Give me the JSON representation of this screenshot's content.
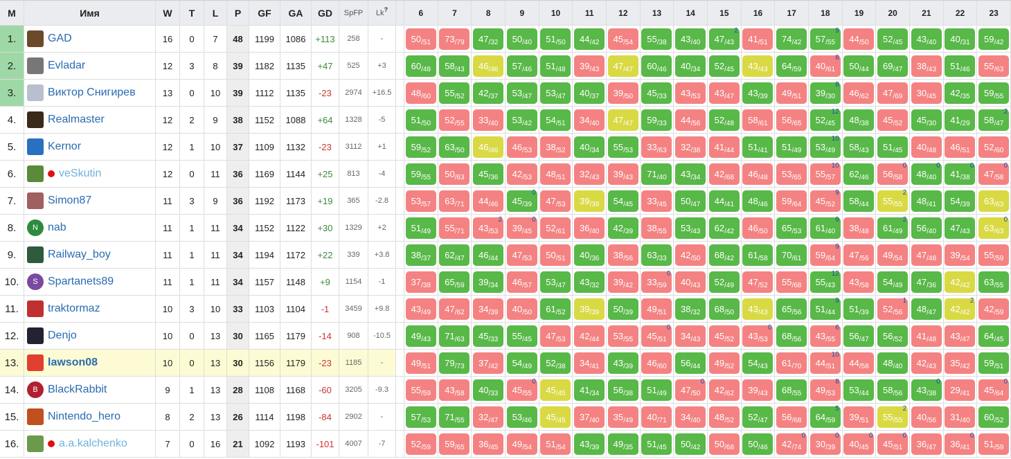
{
  "header": {
    "rank": "M",
    "name": "Имя",
    "w": "W",
    "t": "T",
    "l": "L",
    "p": "P",
    "gf": "GF",
    "ga": "GA",
    "gd": "GD",
    "spfp": "SpFP",
    "lk": "Lk",
    "lk_help": "?",
    "rounds": [
      "6",
      "7",
      "8",
      "9",
      "10",
      "11",
      "12",
      "13",
      "14",
      "15",
      "16",
      "17",
      "18",
      "19",
      "20",
      "21",
      "22",
      "23"
    ]
  },
  "rows": [
    {
      "rank": "1.",
      "name": "GAD",
      "w": 16,
      "t": 0,
      "l": 7,
      "p": 48,
      "gf": 1199,
      "ga": 1086,
      "gd": "+113",
      "spfp": 258,
      "lk": "-",
      "rounds": [
        [
          50,
          51
        ],
        [
          73,
          79
        ],
        [
          47,
          32
        ],
        [
          50,
          40
        ],
        [
          51,
          50
        ],
        [
          44,
          42
        ],
        [
          45,
          54
        ],
        [
          55,
          38
        ],
        [
          43,
          40
        ],
        [
          47,
          43,
          2
        ],
        [
          41,
          51
        ],
        [
          74,
          42
        ],
        [
          57,
          55,
          9
        ],
        [
          44,
          50
        ],
        [
          52,
          45
        ],
        [
          43,
          40
        ],
        [
          40,
          31
        ],
        [
          59,
          42
        ]
      ]
    },
    {
      "rank": "2.",
      "name": "Evladar",
      "w": 12,
      "t": 3,
      "l": 8,
      "p": 39,
      "gf": 1182,
      "ga": 1135,
      "gd": "+47",
      "spfp": 525,
      "lk": "+3",
      "rounds": [
        [
          60,
          48
        ],
        [
          58,
          43
        ],
        [
          46,
          46
        ],
        [
          57,
          46
        ],
        [
          51,
          48
        ],
        [
          39,
          43
        ],
        [
          47,
          47
        ],
        [
          60,
          46
        ],
        [
          40,
          34
        ],
        [
          52,
          45
        ],
        [
          43,
          43
        ],
        [
          64,
          59
        ],
        [
          40,
          61,
          8
        ],
        [
          50,
          44
        ],
        [
          69,
          47
        ],
        [
          38,
          43
        ],
        [
          51,
          46
        ],
        [
          55,
          63
        ]
      ]
    },
    {
      "rank": "3.",
      "name": "Виктор Снигирев",
      "w": 13,
      "t": 0,
      "l": 10,
      "p": 39,
      "gf": 1112,
      "ga": 1135,
      "gd": "-23",
      "spfp": 2974,
      "lk": "+16.5",
      "rounds": [
        [
          48,
          60
        ],
        [
          55,
          52
        ],
        [
          42,
          37
        ],
        [
          53,
          47
        ],
        [
          53,
          47
        ],
        [
          40,
          37
        ],
        [
          39,
          50
        ],
        [
          45,
          33
        ],
        [
          43,
          53
        ],
        [
          43,
          47
        ],
        [
          43,
          39
        ],
        [
          49,
          51
        ],
        [
          39,
          30,
          8
        ],
        [
          46,
          62
        ],
        [
          47,
          69
        ],
        [
          30,
          45
        ],
        [
          42,
          35
        ],
        [
          59,
          55
        ]
      ]
    },
    {
      "rank": "4.",
      "name": "Realmaster",
      "w": 12,
      "t": 2,
      "l": 9,
      "p": 38,
      "gf": 1152,
      "ga": 1088,
      "gd": "+64",
      "spfp": 1328,
      "lk": "-5",
      "rounds": [
        [
          51,
          50
        ],
        [
          52,
          55
        ],
        [
          33,
          40
        ],
        [
          53,
          42
        ],
        [
          54,
          51
        ],
        [
          34,
          40
        ],
        [
          47,
          47
        ],
        [
          59,
          33
        ],
        [
          44,
          56
        ],
        [
          52,
          48
        ],
        [
          58,
          61
        ],
        [
          56,
          65
        ],
        [
          52,
          45,
          12
        ],
        [
          48,
          38
        ],
        [
          45,
          52
        ],
        [
          45,
          30
        ],
        [
          41,
          29
        ],
        [
          58,
          47,
          2
        ]
      ]
    },
    {
      "rank": "5.",
      "name": "Kernor",
      "w": 12,
      "t": 1,
      "l": 10,
      "p": 37,
      "gf": 1109,
      "ga": 1132,
      "gd": "-23",
      "spfp": 3112,
      "lk": "+1",
      "rounds": [
        [
          59,
          52
        ],
        [
          63,
          50
        ],
        [
          46,
          46
        ],
        [
          46,
          53
        ],
        [
          38,
          52
        ],
        [
          40,
          34
        ],
        [
          55,
          53
        ],
        [
          33,
          63
        ],
        [
          32,
          38
        ],
        [
          41,
          44
        ],
        [
          51,
          41
        ],
        [
          51,
          49
        ],
        [
          53,
          49,
          10
        ],
        [
          58,
          43
        ],
        [
          51,
          45
        ],
        [
          40,
          48
        ],
        [
          46,
          51
        ],
        [
          52,
          60
        ]
      ]
    },
    {
      "rank": "6.",
      "name": "veSkutin",
      "w": 12,
      "t": 0,
      "l": 11,
      "p": 36,
      "gf": 1169,
      "ga": 1144,
      "gd": "+25",
      "spfp": 813,
      "lk": "-4",
      "rounds": [
        [
          59,
          55
        ],
        [
          50,
          63
        ],
        [
          45,
          36
        ],
        [
          42,
          53
        ],
        [
          48,
          51
        ],
        [
          32,
          43
        ],
        [
          39,
          43
        ],
        [
          71,
          40
        ],
        [
          43,
          34
        ],
        [
          42,
          68
        ],
        [
          46,
          48
        ],
        [
          53,
          65
        ],
        [
          55,
          57,
          10
        ],
        [
          62,
          46
        ],
        [
          56,
          58,
          0
        ],
        [
          48,
          40,
          0
        ],
        [
          41,
          38,
          0
        ],
        [
          47,
          58,
          0
        ]
      ]
    },
    {
      "rank": "7.",
      "name": "Simon87",
      "w": 11,
      "t": 3,
      "l": 9,
      "p": 36,
      "gf": 1192,
      "ga": 1173,
      "gd": "+19",
      "spfp": 365,
      "lk": "-2.8",
      "rounds": [
        [
          53,
          57
        ],
        [
          63,
          71
        ],
        [
          44,
          46
        ],
        [
          45,
          39,
          0
        ],
        [
          47,
          53
        ],
        [
          39,
          39
        ],
        [
          54,
          45
        ],
        [
          33,
          45
        ],
        [
          50,
          47
        ],
        [
          44,
          41
        ],
        [
          48,
          46
        ],
        [
          59,
          64
        ],
        [
          45,
          52,
          9
        ],
        [
          58,
          44
        ],
        [
          55,
          55,
          2
        ],
        [
          48,
          41
        ],
        [
          54,
          39
        ],
        [
          63,
          63
        ]
      ]
    },
    {
      "rank": "8.",
      "name": "nab",
      "avatar": "N",
      "w": 11,
      "t": 1,
      "l": 11,
      "p": 34,
      "gf": 1152,
      "ga": 1122,
      "gd": "+30",
      "spfp": 1329,
      "lk": "+2",
      "rounds": [
        [
          51,
          49
        ],
        [
          55,
          71
        ],
        [
          43,
          53,
          2
        ],
        [
          39,
          45,
          0
        ],
        [
          52,
          61
        ],
        [
          36,
          40
        ],
        [
          42,
          39
        ],
        [
          38,
          55
        ],
        [
          53,
          43
        ],
        [
          62,
          42
        ],
        [
          46,
          50
        ],
        [
          65,
          53
        ],
        [
          61,
          40,
          9
        ],
        [
          38,
          48
        ],
        [
          61,
          49,
          2
        ],
        [
          56,
          40
        ],
        [
          47,
          43
        ],
        [
          63,
          63,
          0
        ]
      ]
    },
    {
      "rank": "9.",
      "name": "Railway_boy",
      "w": 11,
      "t": 1,
      "l": 11,
      "p": 34,
      "gf": 1194,
      "ga": 1172,
      "gd": "+22",
      "spfp": 339,
      "lk": "+3.8",
      "rounds": [
        [
          38,
          37
        ],
        [
          62,
          47
        ],
        [
          46,
          44
        ],
        [
          47,
          53
        ],
        [
          50,
          51
        ],
        [
          40,
          36
        ],
        [
          38,
          56
        ],
        [
          63,
          33
        ],
        [
          42,
          50
        ],
        [
          68,
          42
        ],
        [
          61,
          58
        ],
        [
          70,
          61
        ],
        [
          59,
          64,
          9
        ],
        [
          47,
          56
        ],
        [
          49,
          54
        ],
        [
          47,
          48
        ],
        [
          39,
          54
        ],
        [
          55,
          59
        ]
      ]
    },
    {
      "rank": "10.",
      "name": "Spartanets89",
      "avatar": "S",
      "w": 11,
      "t": 1,
      "l": 11,
      "p": 34,
      "gf": 1157,
      "ga": 1148,
      "gd": "+9",
      "spfp": 1154,
      "lk": "-1",
      "rounds": [
        [
          37,
          38
        ],
        [
          65,
          59
        ],
        [
          39,
          34
        ],
        [
          46,
          57
        ],
        [
          53,
          47
        ],
        [
          43,
          32
        ],
        [
          39,
          42
        ],
        [
          33,
          59,
          0
        ],
        [
          40,
          43
        ],
        [
          52,
          49
        ],
        [
          47,
          52
        ],
        [
          55,
          68
        ],
        [
          55,
          43,
          12
        ],
        [
          43,
          58
        ],
        [
          54,
          49
        ],
        [
          47,
          36
        ],
        [
          42,
          42
        ],
        [
          63,
          55
        ]
      ]
    },
    {
      "rank": "11.",
      "name": "traktormaz",
      "w": 10,
      "t": 3,
      "l": 10,
      "p": 33,
      "gf": 1103,
      "ga": 1104,
      "gd": "-1",
      "spfp": 3459,
      "lk": "+9.8",
      "rounds": [
        [
          43,
          49
        ],
        [
          47,
          62
        ],
        [
          34,
          39
        ],
        [
          40,
          50
        ],
        [
          61,
          52
        ],
        [
          39,
          39
        ],
        [
          50,
          39
        ],
        [
          49,
          51
        ],
        [
          38,
          32
        ],
        [
          68,
          50
        ],
        [
          43,
          43
        ],
        [
          65,
          56
        ],
        [
          51,
          44,
          9
        ],
        [
          51,
          39
        ],
        [
          52,
          56,
          1
        ],
        [
          48,
          47
        ],
        [
          42,
          42,
          2
        ],
        [
          42,
          59
        ]
      ]
    },
    {
      "rank": "12.",
      "name": "Denjo",
      "w": 10,
      "t": 0,
      "l": 13,
      "p": 30,
      "gf": 1165,
      "ga": 1179,
      "gd": "-14",
      "spfp": 908,
      "lk": "-10.5",
      "rounds": [
        [
          49,
          43
        ],
        [
          71,
          63
        ],
        [
          45,
          33
        ],
        [
          55,
          45
        ],
        [
          47,
          53
        ],
        [
          42,
          44
        ],
        [
          53,
          55
        ],
        [
          45,
          51,
          0
        ],
        [
          34,
          43
        ],
        [
          45,
          52
        ],
        [
          43,
          53,
          0
        ],
        [
          68,
          56
        ],
        [
          43,
          55,
          6
        ],
        [
          56,
          47
        ],
        [
          56,
          52
        ],
        [
          41,
          48
        ],
        [
          43,
          47
        ],
        [
          64,
          45
        ]
      ]
    },
    {
      "rank": "13.",
      "name": "lawson08",
      "w": 10,
      "t": 0,
      "l": 13,
      "p": 30,
      "gf": 1156,
      "ga": 1179,
      "gd": "-23",
      "spfp": 1185,
      "lk": "-",
      "rounds": [
        [
          49,
          51
        ],
        [
          79,
          73
        ],
        [
          37,
          42
        ],
        [
          54,
          49
        ],
        [
          52,
          38
        ],
        [
          34,
          41
        ],
        [
          43,
          39
        ],
        [
          46,
          60
        ],
        [
          56,
          44
        ],
        [
          49,
          52
        ],
        [
          54,
          43
        ],
        [
          61,
          70
        ],
        [
          44,
          51,
          10
        ],
        [
          44,
          58
        ],
        [
          48,
          40
        ],
        [
          42,
          43
        ],
        [
          35,
          42
        ],
        [
          59,
          51
        ]
      ]
    },
    {
      "rank": "14.",
      "name": "BlackRabbit",
      "avatar": "B",
      "w": 9,
      "t": 1,
      "l": 13,
      "p": 28,
      "gf": 1108,
      "ga": 1168,
      "gd": "-60",
      "spfp": 3205,
      "lk": "-9.3",
      "rounds": [
        [
          55,
          59
        ],
        [
          43,
          58
        ],
        [
          40,
          33
        ],
        [
          45,
          55,
          0
        ],
        [
          45,
          45
        ],
        [
          41,
          34
        ],
        [
          56,
          38
        ],
        [
          51,
          49
        ],
        [
          47,
          50,
          0
        ],
        [
          42,
          62
        ],
        [
          39,
          43
        ],
        [
          68,
          55
        ],
        [
          49,
          53,
          8
        ],
        [
          53,
          44
        ],
        [
          58,
          56
        ],
        [
          43,
          38,
          0
        ],
        [
          29,
          41
        ],
        [
          45,
          64,
          0
        ]
      ]
    },
    {
      "rank": "15.",
      "name": "Nintendo_hero",
      "w": 8,
      "t": 2,
      "l": 13,
      "p": 26,
      "gf": 1114,
      "ga": 1198,
      "gd": "-84",
      "spfp": 2902,
      "lk": "-",
      "rounds": [
        [
          57,
          53
        ],
        [
          71,
          55
        ],
        [
          32,
          47
        ],
        [
          53,
          46
        ],
        [
          45,
          45
        ],
        [
          37,
          40
        ],
        [
          35,
          49
        ],
        [
          40,
          71
        ],
        [
          34,
          40
        ],
        [
          48,
          52
        ],
        [
          52,
          47
        ],
        [
          56,
          68
        ],
        [
          64,
          59,
          5
        ],
        [
          39,
          51
        ],
        [
          55,
          55,
          2
        ],
        [
          40,
          56
        ],
        [
          31,
          40
        ],
        [
          60,
          52
        ]
      ]
    },
    {
      "rank": "16.",
      "name": "a.a.kalchenko",
      "w": 7,
      "t": 0,
      "l": 16,
      "p": 21,
      "gf": 1092,
      "ga": 1193,
      "gd": "-101",
      "spfp": 4007,
      "lk": "-7",
      "rounds": [
        [
          52,
          59
        ],
        [
          59,
          65
        ],
        [
          36,
          45
        ],
        [
          49,
          54
        ],
        [
          51,
          54
        ],
        [
          43,
          39
        ],
        [
          49,
          35
        ],
        [
          51,
          45
        ],
        [
          50,
          42
        ],
        [
          50,
          68
        ],
        [
          50,
          46
        ],
        [
          42,
          74,
          0
        ],
        [
          30,
          39,
          0
        ],
        [
          40,
          45,
          0
        ],
        [
          45,
          51,
          0
        ],
        [
          36,
          47
        ],
        [
          36,
          41,
          0
        ],
        [
          51,
          59
        ]
      ]
    }
  ]
}
